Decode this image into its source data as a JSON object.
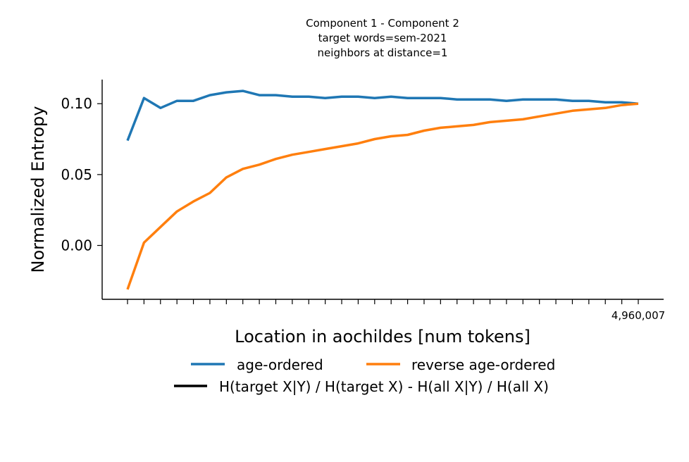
{
  "chart_data": {
    "type": "line",
    "title": "Component 1 - Component 2",
    "subtitle": [
      "target words=sem-2021",
      "neighbors at distance=1"
    ],
    "xlabel": "Location in aochildes [num tokens]",
    "ylabel": "Normalized Entropy",
    "x_tick_label_last": "4,960,007",
    "x_tick_count": 32,
    "ylim": [
      -0.038,
      0.117
    ],
    "yticks": [
      {
        "value": 0.1,
        "label": "0.10"
      },
      {
        "value": 0.05,
        "label": "0.05"
      },
      {
        "value": 0.0,
        "label": "0.00"
      }
    ],
    "grid": false,
    "legend_placement": "bottom-center",
    "series": [
      {
        "name": "age-ordered",
        "color": "#1f77b4",
        "values": [
          0.074,
          0.104,
          0.097,
          0.102,
          0.102,
          0.106,
          0.108,
          0.109,
          0.106,
          0.106,
          0.105,
          0.105,
          0.104,
          0.105,
          0.105,
          0.104,
          0.105,
          0.104,
          0.104,
          0.104,
          0.103,
          0.103,
          0.103,
          0.102,
          0.103,
          0.103,
          0.103,
          0.102,
          0.102,
          0.101,
          0.101,
          0.1
        ]
      },
      {
        "name": "reverse age-ordered",
        "color": "#ff7f0e",
        "values": [
          -0.031,
          0.002,
          0.013,
          0.024,
          0.031,
          0.037,
          0.048,
          0.054,
          0.057,
          0.061,
          0.064,
          0.066,
          0.068,
          0.07,
          0.072,
          0.075,
          0.077,
          0.078,
          0.081,
          0.083,
          0.084,
          0.085,
          0.087,
          0.088,
          0.089,
          0.091,
          0.093,
          0.095,
          0.096,
          0.097,
          0.099,
          0.1
        ]
      }
    ],
    "legend_extra": {
      "name": "H(target X|Y) / H(target X) - H(all X|Y) / H(all X)",
      "color": "#000000"
    }
  }
}
